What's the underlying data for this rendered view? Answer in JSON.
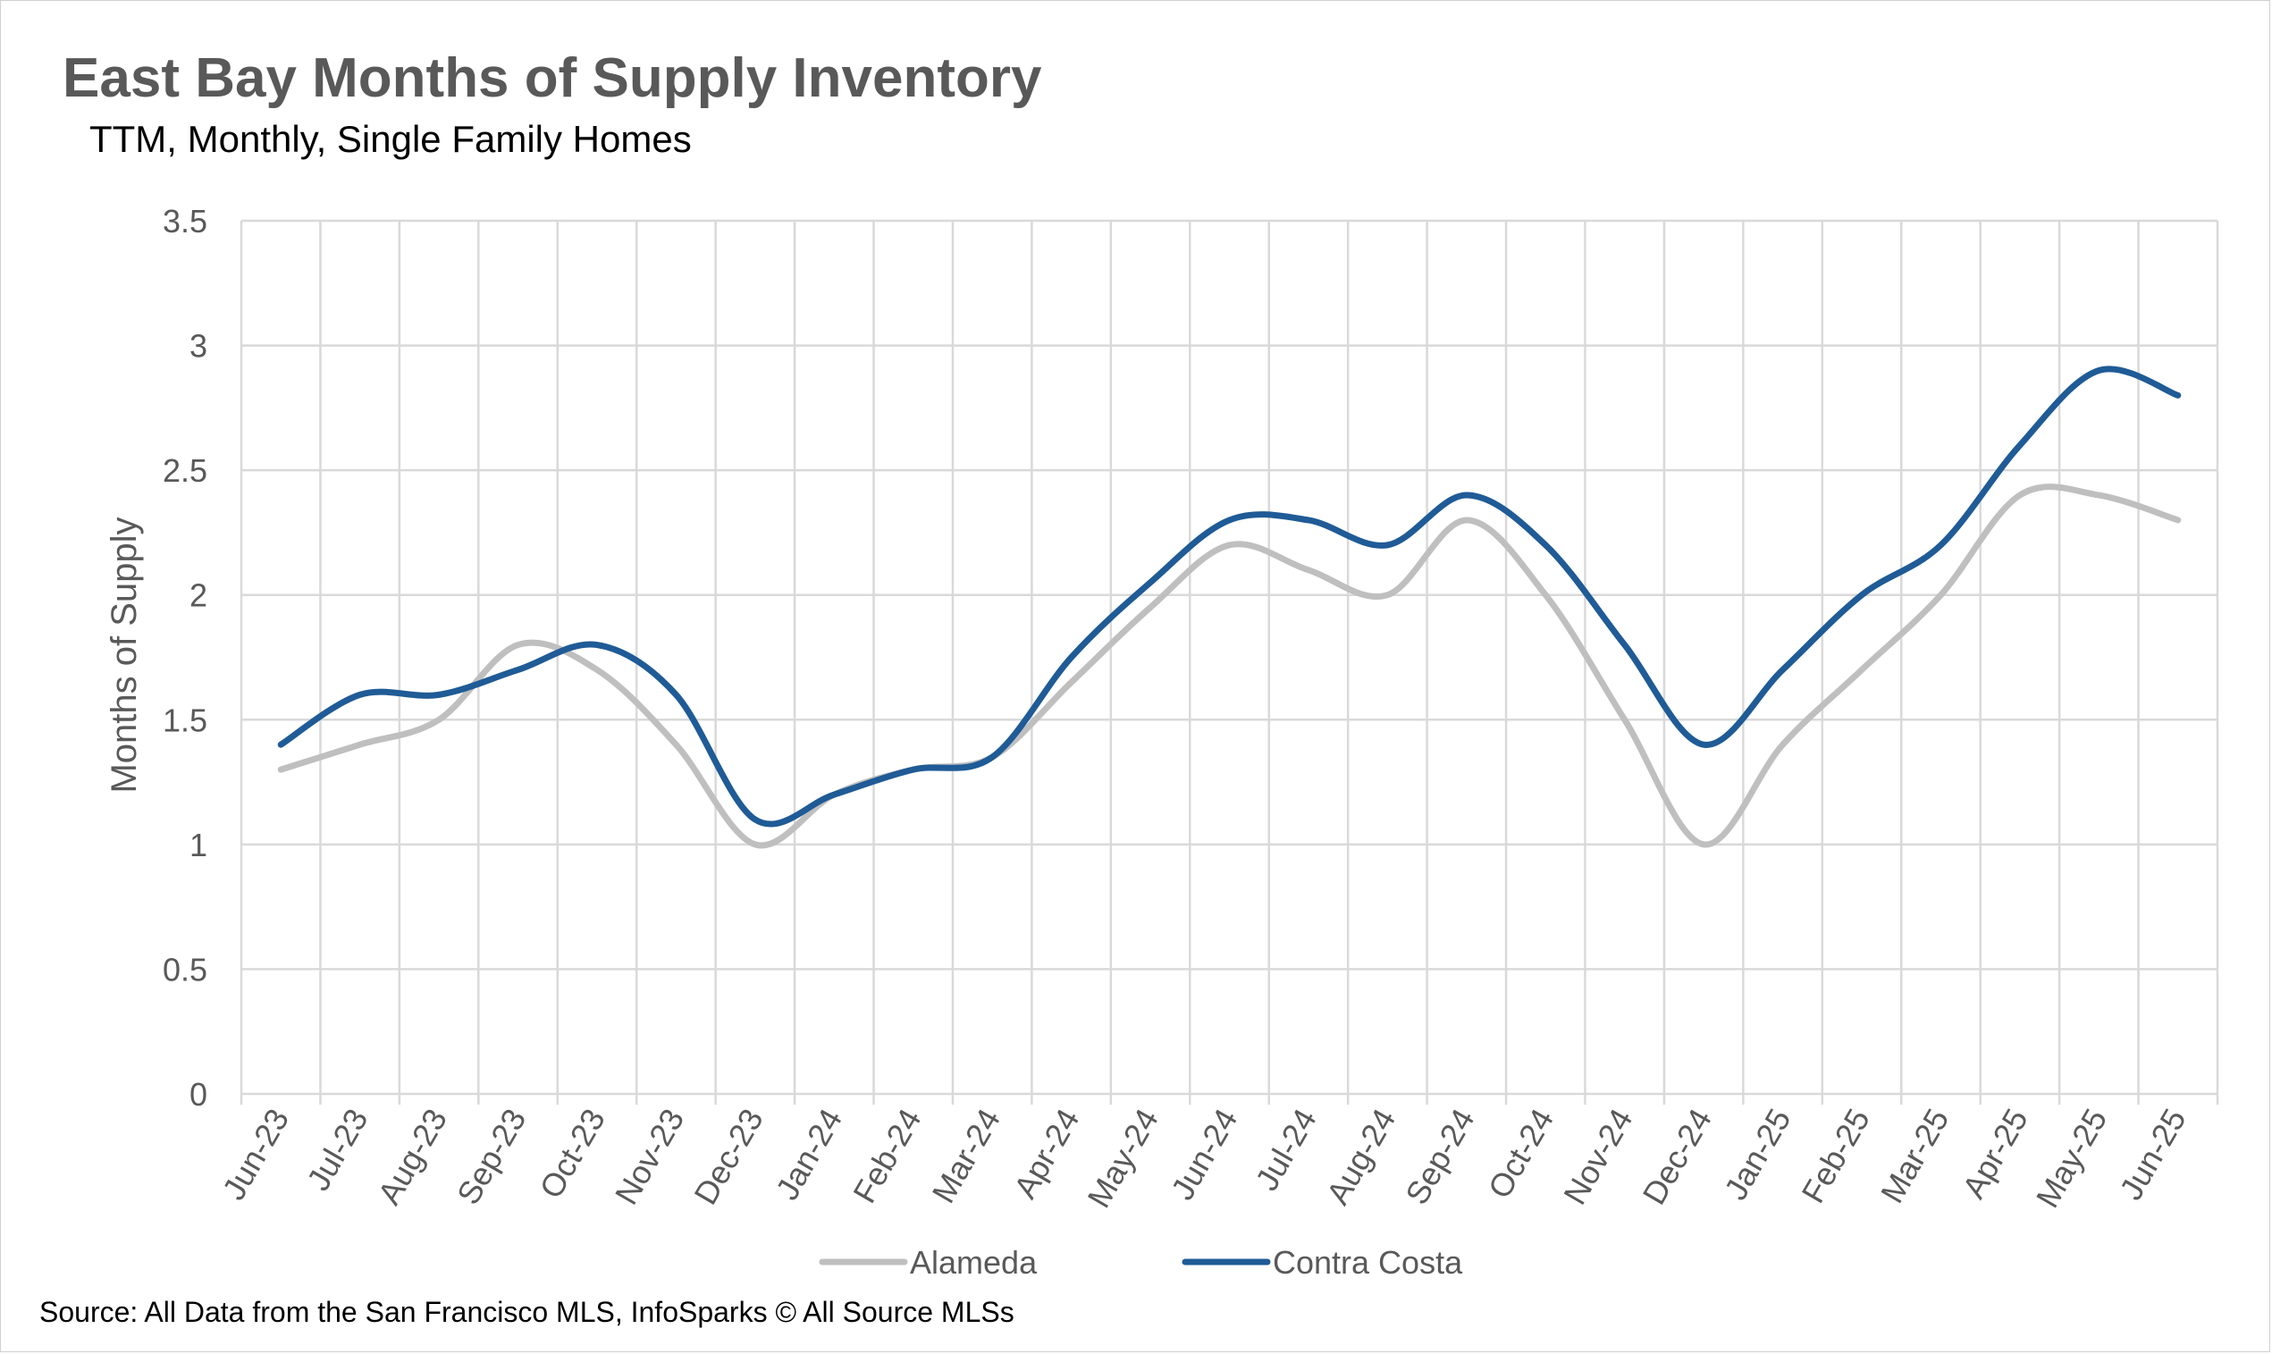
{
  "chart_data": {
    "type": "line",
    "title": "East Bay Months of Supply Inventory",
    "subtitle": "TTM, Monthly, Single Family Homes",
    "xlabel": "",
    "ylabel": "Months of Supply",
    "ylim": [
      0,
      3.5
    ],
    "yticks": [
      "0",
      "0.5",
      "1",
      "1.5",
      "2",
      "2.5",
      "3",
      "3.5"
    ],
    "grid": true,
    "legend_position": "bottom",
    "categories": [
      "Jun-23",
      "Jul-23",
      "Aug-23",
      "Sep-23",
      "Oct-23",
      "Nov-23",
      "Dec-23",
      "Jan-24",
      "Feb-24",
      "Mar-24",
      "Apr-24",
      "May-24",
      "Jun-24",
      "Jul-24",
      "Aug-24",
      "Sep-24",
      "Oct-24",
      "Nov-24",
      "Dec-24",
      "Jan-25",
      "Feb-25",
      "Mar-25",
      "Apr-25",
      "May-25",
      "Jun-25"
    ],
    "series": [
      {
        "name": "Alameda",
        "color": "#bfbfbf",
        "values": [
          1.3,
          1.4,
          1.5,
          1.8,
          1.7,
          1.4,
          1.0,
          1.2,
          1.3,
          1.35,
          1.65,
          1.95,
          2.2,
          2.1,
          2.0,
          2.3,
          2.0,
          1.5,
          1.0,
          1.4,
          1.7,
          2.0,
          2.4,
          2.4,
          2.3
        ]
      },
      {
        "name": "Contra Costa",
        "color": "#1f5b96",
        "values": [
          1.4,
          1.6,
          1.6,
          1.7,
          1.8,
          1.6,
          1.1,
          1.2,
          1.3,
          1.35,
          1.75,
          2.05,
          2.3,
          2.3,
          2.2,
          2.4,
          2.2,
          1.8,
          1.4,
          1.7,
          2.0,
          2.2,
          2.6,
          2.9,
          2.8
        ]
      }
    ],
    "source": "Source: All Data from the San Francisco MLS, InfoSparks © All Source MLSs"
  }
}
